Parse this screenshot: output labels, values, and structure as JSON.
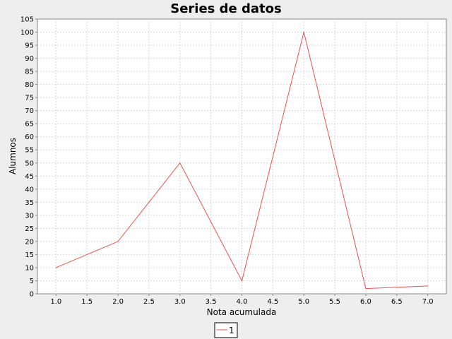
{
  "chart_data": {
    "type": "line",
    "title": "Series de datos",
    "xlabel": "Nota acumulada",
    "ylabel": "Alumnos",
    "xlim": [
      0.7,
      7.3
    ],
    "ylim": [
      0,
      105
    ],
    "x_ticks": [
      "1.0",
      "1.5",
      "2.0",
      "2.5",
      "3.0",
      "3.5",
      "4.0",
      "4.5",
      "5.0",
      "5.5",
      "6.0",
      "6.5",
      "7.0"
    ],
    "y_ticks": [
      "0",
      "5",
      "10",
      "15",
      "20",
      "25",
      "30",
      "35",
      "40",
      "45",
      "50",
      "55",
      "60",
      "65",
      "70",
      "75",
      "80",
      "85",
      "90",
      "95",
      "100",
      "105"
    ],
    "grid": true,
    "legend_position": "bottom-center",
    "series": [
      {
        "name": "1",
        "color": "#e8534f",
        "x": [
          1.0,
          2.0,
          3.0,
          4.0,
          5.0,
          6.0,
          7.0
        ],
        "y": [
          10,
          20,
          50,
          5,
          100,
          2,
          3
        ]
      }
    ]
  },
  "colors": {
    "background": "#eeeeee",
    "plot_background": "#ffffff",
    "grid": "#d9d9d9",
    "axis": "#888888"
  }
}
